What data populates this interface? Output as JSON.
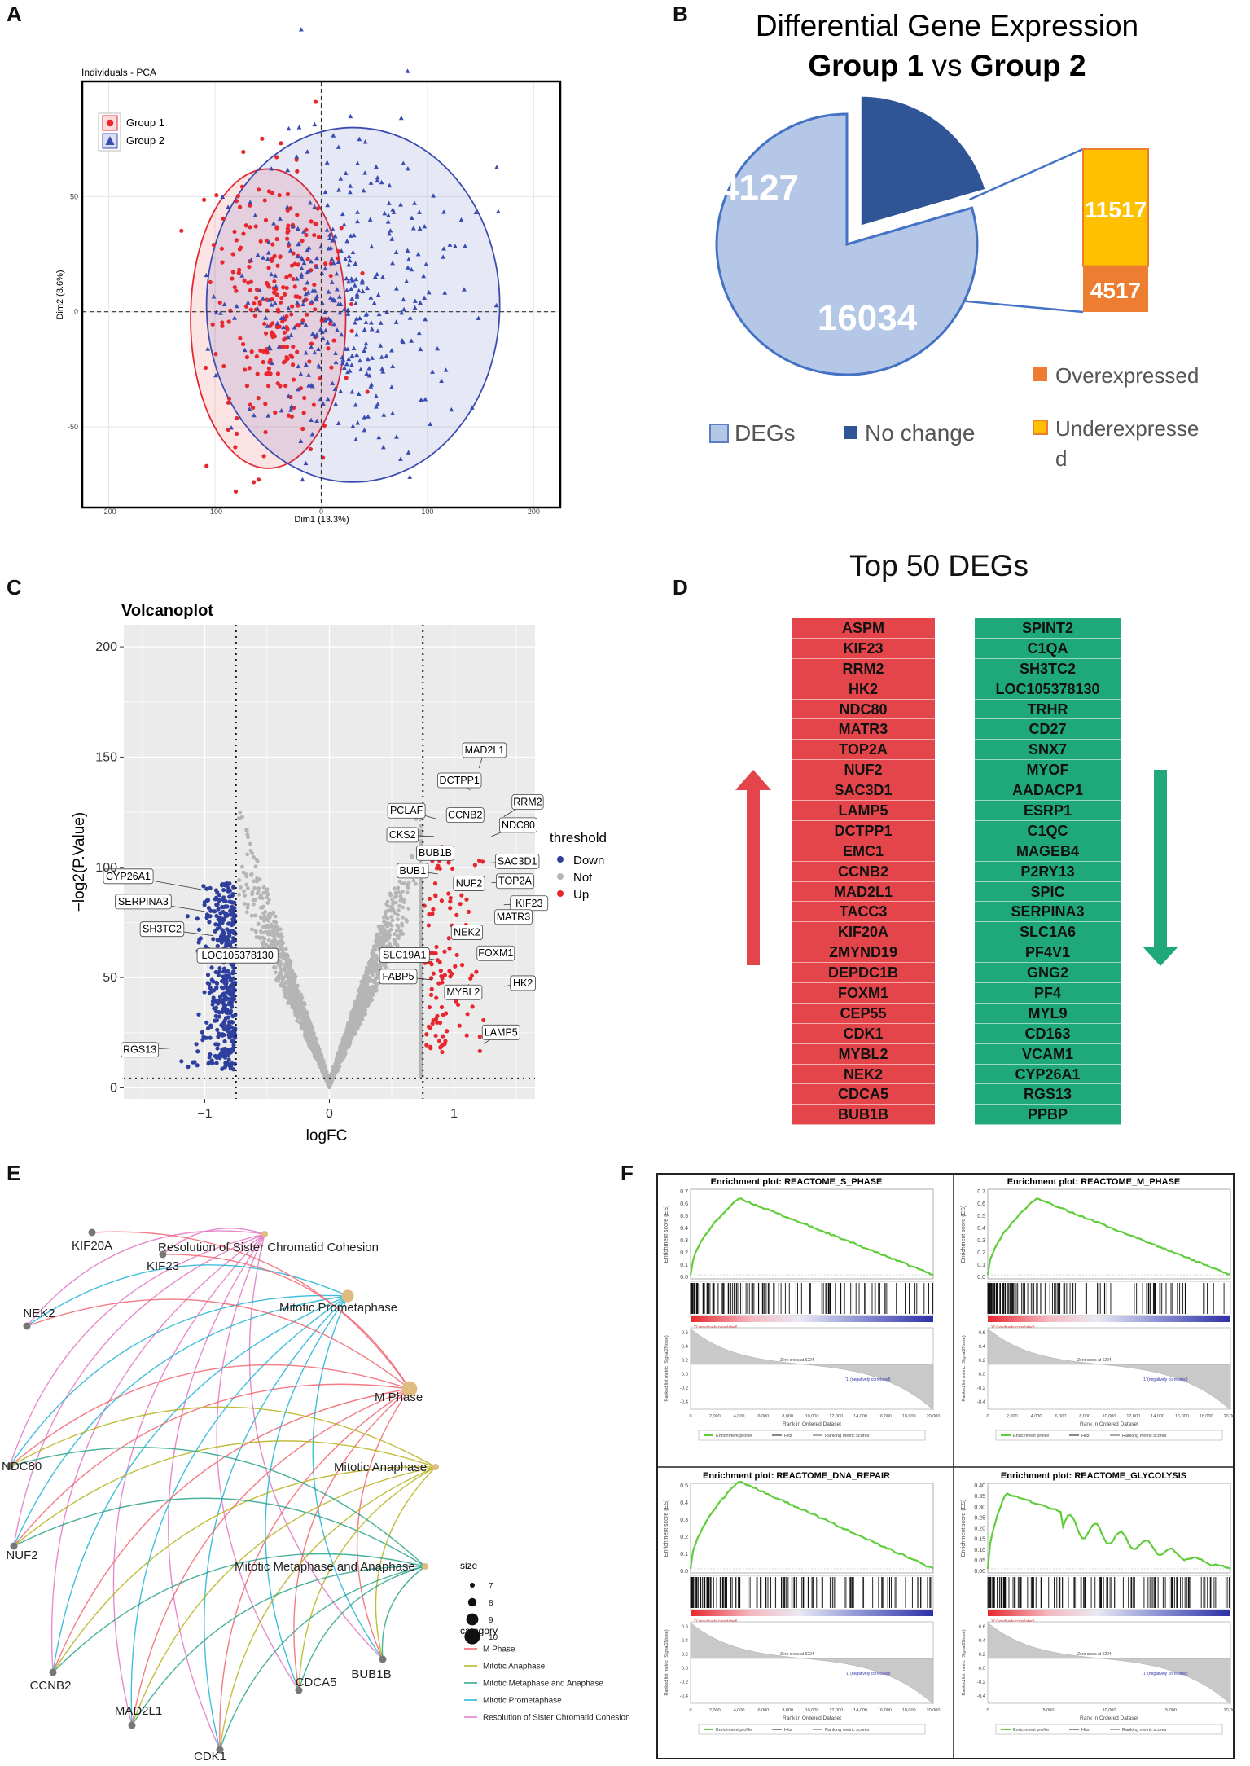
{
  "panel_labels": {
    "a": "A",
    "b": "B",
    "c": "C",
    "d": "D",
    "e": "E",
    "f": "F"
  },
  "chart_data": [
    {
      "id": "A",
      "type": "scatter",
      "title": "Individuals - PCA",
      "xlabel": "Dim1 (13.3%)",
      "ylabel": "Dim2 (3.6%)",
      "xlim": [
        -225,
        225
      ],
      "ylim": [
        -85,
        100
      ],
      "xticks": [
        -200,
        -100,
        0,
        100,
        200
      ],
      "yticks": [
        -50,
        0,
        50
      ],
      "legend": [
        {
          "name": "Group 1",
          "marker": "circle",
          "color": "#e8262e"
        },
        {
          "name": "Group 2",
          "marker": "triangle",
          "color": "#3b4cb0"
        }
      ],
      "ellipses": [
        {
          "group": "Group 1",
          "center": [
            -50,
            -3
          ],
          "radii": [
            73,
            65
          ],
          "color": "#e8262e"
        },
        {
          "group": "Group 2",
          "center": [
            30,
            3
          ],
          "radii": [
            138,
            77
          ],
          "color": "#3b4cb0"
        }
      ]
    },
    {
      "id": "B",
      "type": "pie",
      "title_line1": "Differential Gene Expression",
      "title_line2_a": "Group 1",
      "title_line2_vs": "vs",
      "title_line2_b": "Group 2",
      "slices": [
        {
          "label": "DEGs",
          "value": 16034,
          "color": "#b4c7e7"
        },
        {
          "label": "No change",
          "value": 4127,
          "color": "#2f5597"
        }
      ],
      "breakdown": [
        {
          "label": "Underexpressed",
          "value": 11517,
          "color": "#ffc000"
        },
        {
          "label": "Overexpressed",
          "value": 4517,
          "color": "#ed7d31"
        }
      ],
      "legend_pie": [
        "DEGs",
        "No change"
      ],
      "legend_bar_over": "Overexpressed",
      "legend_bar_under_1": "Underexpresse",
      "legend_bar_under_2": "d"
    },
    {
      "id": "C",
      "type": "scatter",
      "title": "Volcanoplot",
      "xlabel": "logFC",
      "ylabel": "−log2(P.Value)",
      "xlim": [
        -1.65,
        1.65
      ],
      "ylim": [
        -5,
        210
      ],
      "xticks": [
        -1,
        0,
        1
      ],
      "yticks": [
        0,
        50,
        100,
        150,
        200
      ],
      "thresholds": {
        "logfc": 0.75,
        "neglog2p": 4.3
      },
      "legend_title": "threshold",
      "legend": [
        {
          "name": "Down",
          "color": "#2f3f9e"
        },
        {
          "name": "Not",
          "color": "#b5b5b5"
        },
        {
          "name": "Up",
          "color": "#e8262e"
        }
      ],
      "labels": [
        {
          "text": "MAD2L1",
          "x": 1.2,
          "y": 145
        },
        {
          "text": "DCTPP1",
          "x": 1.13,
          "y": 135
        },
        {
          "text": "RRM2",
          "x": 1.4,
          "y": 123
        },
        {
          "text": "PCLAF",
          "x": 0.86,
          "y": 122
        },
        {
          "text": "CCNB2",
          "x": 1.07,
          "y": 120
        },
        {
          "text": "CKS2",
          "x": 0.84,
          "y": 114
        },
        {
          "text": "NDC80",
          "x": 1.3,
          "y": 114
        },
        {
          "text": "BUB1B",
          "x": 1.0,
          "y": 105
        },
        {
          "text": "BUB1",
          "x": 0.87,
          "y": 97
        },
        {
          "text": "SAC3D1",
          "x": 1.28,
          "y": 102
        },
        {
          "text": "NUF2",
          "x": 1.1,
          "y": 92
        },
        {
          "text": "TOP2A",
          "x": 1.3,
          "y": 93
        },
        {
          "text": "KIF23",
          "x": 1.4,
          "y": 83
        },
        {
          "text": "NEK2",
          "x": 1.07,
          "y": 72
        },
        {
          "text": "MATR3",
          "x": 1.3,
          "y": 76
        },
        {
          "text": "FOXM1",
          "x": 1.25,
          "y": 64
        },
        {
          "text": "SLC19A1",
          "x": 0.86,
          "y": 58
        },
        {
          "text": "FABP5",
          "x": 0.82,
          "y": 49
        },
        {
          "text": "HK2",
          "x": 1.4,
          "y": 46
        },
        {
          "text": "MYBL2",
          "x": 1.12,
          "y": 47
        },
        {
          "text": "LAMP5",
          "x": 1.24,
          "y": 20
        },
        {
          "text": "CYP26A1",
          "x": -1.03,
          "y": 90
        },
        {
          "text": "SERPINA3",
          "x": -1.0,
          "y": 80
        },
        {
          "text": "SH3TC2",
          "x": -0.93,
          "y": 69
        },
        {
          "text": "LOC105378130",
          "x": -0.8,
          "y": 57
        },
        {
          "text": "RGS13",
          "x": -1.28,
          "y": 18
        }
      ]
    },
    {
      "id": "F",
      "type": "line",
      "subplots": [
        {
          "title": "Enrichment plot: REACTOME_S_PHASE",
          "peak": 0.67,
          "peak_rank": 4000,
          "yticks": [
            "0.7",
            "0.6",
            "0.5",
            "0.4",
            "0.3",
            "0.2",
            "0.1",
            "0.0"
          ]
        },
        {
          "title": "Enrichment plot: REACTOME_M_PHASE",
          "peak": 0.67,
          "peak_rank": 4000,
          "yticks": [
            "0.7",
            "0.6",
            "0.5",
            "0.4",
            "0.3",
            "0.2",
            "0.1",
            "0.0"
          ]
        },
        {
          "title": "Enrichment plot: REACTOME_DNA_REPAIR",
          "peak": 0.55,
          "peak_rank": 4000,
          "yticks": [
            "0.5",
            "0.4",
            "0.3",
            "0.2",
            "0.1",
            "0.0"
          ]
        },
        {
          "title": "Enrichment plot: REACTOME_GLYCOLYSIS",
          "peak": 0.38,
          "peak_rank": 1500,
          "yticks": [
            "0.40",
            "0.35",
            "0.30",
            "0.25",
            "0.20",
            "0.15",
            "0.10",
            "0.05",
            "0.00"
          ]
        }
      ],
      "ylabel_top": "Enrichment score (ES)",
      "ylabel_bottom": "Ranked list metric (Signal2Noise)",
      "xlabel": "Rank in Ordered Dataset",
      "pos_label": "'0' (positively correlated)",
      "neg_label": "'1' (negatively correlated)",
      "zero_cross": "Zero cross at 6224",
      "legend": [
        "Enrichment profile",
        "Hits",
        "Ranking metric scores"
      ],
      "xticks": [
        "0",
        "2,000",
        "4,000",
        "6,000",
        "8,000",
        "10,000",
        "12,000",
        "14,000",
        "16,000",
        "18,000",
        "20,000"
      ],
      "xticks_glycolysis": [
        "0",
        "5,000",
        "10,000",
        "15,000",
        "20,000"
      ],
      "bottom_yticks": [
        "0.6",
        "0.4",
        "0.2",
        "0.0",
        "-0.2",
        "-0.4"
      ]
    }
  ],
  "panel_d": {
    "title": "Top 50 DEGs",
    "up_genes": [
      "ASPM",
      "KIF23",
      "RRM2",
      "HK2",
      "NDC80",
      "MATR3",
      "TOP2A",
      "NUF2",
      "SAC3D1",
      "LAMP5",
      "DCTPP1",
      "EMC1",
      "CCNB2",
      "MAD2L1",
      "TACC3",
      "KIF20A",
      "ZMYND19",
      "DEPDC1B",
      "FOXM1",
      "CEP55",
      "CDK1",
      "MYBL2",
      "NEK2",
      "CDCA5",
      "BUB1B"
    ],
    "down_genes": [
      "SPINT2",
      "C1QA",
      "SH3TC2",
      "LOC105378130",
      "TRHR",
      "CD27",
      "SNX7",
      "MYOF",
      "AADACP1",
      "ESRP1",
      "C1QC",
      "MAGEB4",
      "P2RY13",
      "SPIC",
      "SERPINA3",
      "SLC1A6",
      "PF4V1",
      "GNG2",
      "PF4",
      "MYL9",
      "CD163",
      "VCAM1",
      "CYP26A1",
      "RGS13",
      "PPBP"
    ]
  },
  "panel_e": {
    "genes": [
      "KIF23",
      "KIF20A",
      "NEK2",
      "NDC80",
      "NUF2",
      "CCNB2",
      "MAD2L1",
      "CDK1",
      "CDCA5",
      "BUB1B"
    ],
    "categories": [
      {
        "name": "Resolution of Sister Chromatid Cohesion",
        "size": 7,
        "color": "#e377c2"
      },
      {
        "name": "Mitotic Prometaphase",
        "size": 9,
        "color": "#1fb3d6"
      },
      {
        "name": "M Phase",
        "size": 10,
        "color": "#f0646e"
      },
      {
        "name": "Mitotic Anaphase",
        "size": 7,
        "color": "#b5b21a"
      },
      {
        "name": "Mitotic Metaphase and Anaphase",
        "size": 7,
        "color": "#2aa389"
      }
    ],
    "size_title": "size",
    "size_values": [
      "7",
      "8",
      "9",
      "10"
    ],
    "category_title": "category",
    "legend_order": [
      "M Phase",
      "Mitotic Anaphase",
      "Mitotic Metaphase and Anaphase",
      "Mitotic Prometaphase",
      "Resolution of Sister Chromatid Cohesion"
    ]
  }
}
